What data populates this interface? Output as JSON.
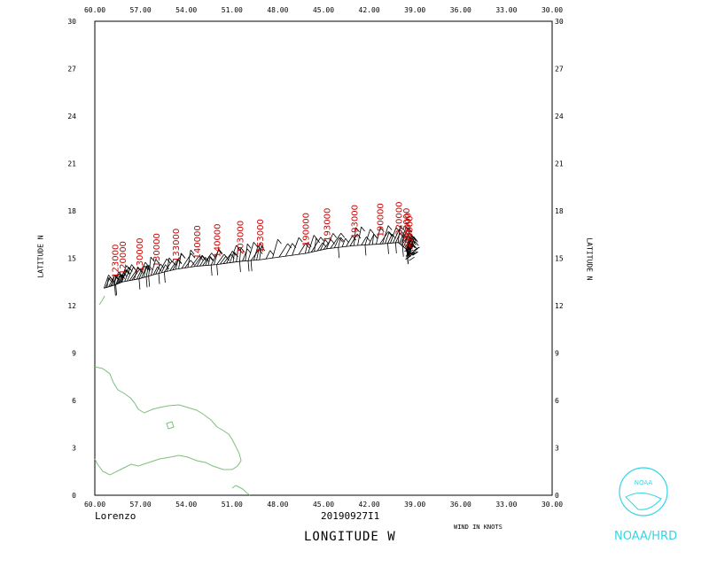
{
  "storm_name": "Lorenzo",
  "timestamp": "20190927I1",
  "xlabel": "LONGITUDE  W",
  "ylabel_left": "LATITUDE  N",
  "ylabel_right": "LATITUDE  N",
  "wind_note": "WIND IN KNOTS",
  "agency": "NOAA/HRD",
  "logo_text": "NOAA",
  "colors": {
    "time_labels": "#cc0000",
    "wind_barbs": "#000000",
    "coastline": "#7fbf7f",
    "logo": "#33d6e3"
  },
  "chart_data": {
    "type": "scatter",
    "xlim": [
      60,
      30
    ],
    "ylim": [
      0,
      30
    ],
    "x_ticks": [
      "60.00",
      "57.00",
      "54.00",
      "51.00",
      "48.00",
      "45.00",
      "42.00",
      "39.00",
      "36.00",
      "33.00",
      "30.00"
    ],
    "y_ticks": [
      "0",
      "3",
      "6",
      "9",
      "12",
      "15",
      "18",
      "21",
      "24",
      "27",
      "30"
    ],
    "observations": [
      {
        "lon": 59.4,
        "lat": 13.1,
        "label": ""
      },
      {
        "lon": 58.7,
        "lat": 13.3,
        "label": "123000"
      },
      {
        "lon": 58.2,
        "lat": 13.5,
        "label": "120000"
      },
      {
        "lon": 57.1,
        "lat": 13.7,
        "label": "130000"
      },
      {
        "lon": 56.0,
        "lat": 14.0,
        "label": "130000"
      },
      {
        "lon": 54.7,
        "lat": 14.3,
        "label": "133000"
      },
      {
        "lon": 53.3,
        "lat": 14.5,
        "label": "140000"
      },
      {
        "lon": 52.0,
        "lat": 14.6,
        "label": "140000"
      },
      {
        "lon": 50.5,
        "lat": 14.8,
        "label": "203000"
      },
      {
        "lon": 49.2,
        "lat": 14.9,
        "label": "153000"
      },
      {
        "lon": 46.2,
        "lat": 15.3,
        "label": "190000"
      },
      {
        "lon": 44.8,
        "lat": 15.6,
        "label": "193000"
      },
      {
        "lon": 43.0,
        "lat": 15.8,
        "label": "193000"
      },
      {
        "lon": 41.3,
        "lat": 15.9,
        "label": "190000"
      },
      {
        "lon": 40.1,
        "lat": 16.0,
        "label": "220000"
      },
      {
        "lon": 39.6,
        "lat": 15.6,
        "label": "223000"
      },
      {
        "lon": 39.5,
        "lat": 15.3,
        "label": "230000"
      },
      {
        "lon": 39.4,
        "lat": 15.1,
        "label": "233000"
      }
    ]
  }
}
